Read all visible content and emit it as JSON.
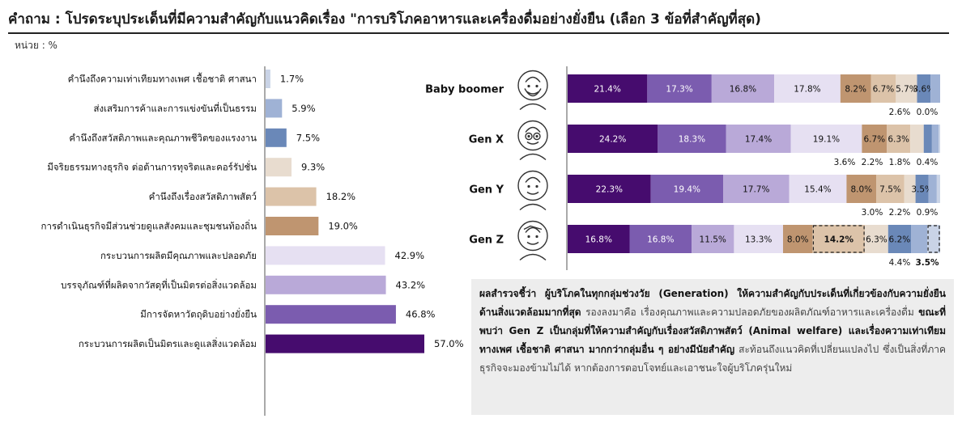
{
  "title": "คำถาม : โปรดระบุประเด็นที่มีความสำคัญกับแนวคิดเรื่อง \"การบริโภคอาหารและเครื่องดื่มอย่างยั่งยืน (เลือก 3 ข้อที่สำคัญที่สุด)",
  "unit": "หน่วย : %",
  "summary": {
    "bold1": "ผลสำรวจชี้ว่า ผู้บริโภคในทุกกลุ่มช่วงวัย (Generation) ให้ความสำคัญกับประเด็นที่เกี่ยวข้องกับความยั่งยืนด้านสิ่งแวดล้อมมากที่สุด",
    "normal1": " รองลงมาคือ เรื่องคุณภาพและความปลอดภัยของผลิตภัณฑ์อาหารและเครื่องดื่ม ",
    "bold2": "ขณะที่พบว่า Gen Z เป็นกลุ่มที่ให้ความสำคัญกับเรื่องสวัสดิภาพสัตว์ (Animal welfare) และเรื่องความเท่าเทียมทางเพศ เชื้อชาติ ศาสนา มากกว่ากลุ่มอื่น ๆ อย่างมีนัยสำคัญ",
    "normal2": " สะท้อนถึงแนวคิดที่เปลี่ยนแปลงไป ซึ่งเป็นสิ่งที่ภาคธุรกิจจะมองข้ามไม่ได้ หากต้องการตอบโจทย์และเอาชนะใจผู้บริโภครุ่นใหม่"
  },
  "chart_data": [
    {
      "type": "bar",
      "orientation": "horizontal",
      "categories": [
        "คำนึงถึงความเท่าเทียมทางเพศ  เชื้อชาติ ศาสนา",
        "ส่งเสริมการค้าและการแข่งขันที่เป็นธรรม",
        "คำนึงถึงสวัสดิภาพและคุณภาพชีวิตของแรงงาน",
        "มีจริยธรรมทางธุรกิจ  ต่อต้านการทุจริตและคอร์รัปชั่น",
        "คำนึงถึงเรื่องสวัสดิภาพสัตว์",
        "การดำเนินธุรกิจมีส่วนช่วยดูแลสังคมและชุมชนท้องถิ่น",
        "กระบวนการผลิตมีคุณภาพและปลอดภัย",
        "บรรจุภัณฑ์ที่ผลิตจากวัสดุที่เป็นมิตรต่อสิ่งแวดล้อม",
        "มีการจัดหาวัตถุดิบอย่างยั่งยืน",
        "กระบวนการผลิตเป็นมิตรและดูแลสิ่งแวดล้อม"
      ],
      "values": [
        1.7,
        5.9,
        7.5,
        9.3,
        18.2,
        19.0,
        42.9,
        43.2,
        46.8,
        57.0
      ],
      "value_labels": [
        "1.7%",
        "5.9%",
        "7.5%",
        "9.3%",
        "18.2%",
        "19.0%",
        "42.9%",
        "43.2%",
        "46.8%",
        "57.0%"
      ],
      "colors": [
        "#c9d3e6",
        "#9fb2d5",
        "#6a88b8",
        "#e8dccf",
        "#dcc3a9",
        "#bf9570",
        "#e6e0f2",
        "#b9a9d8",
        "#7b5caf",
        "#460c6e"
      ],
      "xlim": [
        0,
        57
      ],
      "grid": false
    },
    {
      "type": "bar",
      "orientation": "horizontal",
      "stacked": true,
      "categories": [
        "Baby boomer",
        "Gen X",
        "Gen Y",
        "Gen Z"
      ],
      "series": [
        {
          "color": "#460c6e",
          "values": [
            21.4,
            24.2,
            22.3,
            16.8
          ],
          "labels": [
            "21.4%",
            "24.2%",
            "22.3%",
            "16.8%"
          ]
        },
        {
          "color": "#7b5caf",
          "values": [
            17.3,
            18.3,
            19.4,
            16.8
          ],
          "labels": [
            "17.3%",
            "18.3%",
            "19.4%",
            "16.8%"
          ]
        },
        {
          "color": "#b9a9d8",
          "values": [
            16.8,
            17.4,
            17.7,
            11.5
          ],
          "labels": [
            "16.8%",
            "17.4%",
            "17.7%",
            "11.5%"
          ]
        },
        {
          "color": "#e6e0f2",
          "values": [
            17.8,
            19.1,
            15.4,
            13.3
          ],
          "labels": [
            "17.8%",
            "19.1%",
            "15.4%",
            "13.3%"
          ]
        },
        {
          "color": "#bf9570",
          "values": [
            8.2,
            6.7,
            8.0,
            8.0
          ],
          "labels": [
            "8.2%",
            "6.7%",
            "8.0%",
            "8.0%"
          ]
        },
        {
          "color": "#dcc3a9",
          "values": [
            6.7,
            6.3,
            7.5,
            14.2
          ],
          "labels": [
            "6.7%",
            "6.3%",
            "7.5%",
            "14.2%"
          ]
        },
        {
          "color": "#e8dccf",
          "values": [
            5.7,
            3.6,
            3.0,
            6.3
          ],
          "labels": [
            "5.7%",
            "",
            "",
            "6.3%"
          ]
        },
        {
          "color": "#6a88b8",
          "values": [
            3.6,
            2.2,
            3.5,
            6.2
          ],
          "labels": [
            "3.6%",
            "",
            "3.5%",
            "6.2%"
          ]
        },
        {
          "color": "#9fb2d5",
          "values": [
            2.6,
            1.8,
            2.2,
            4.4
          ],
          "labels": [
            "",
            "",
            "",
            ""
          ]
        },
        {
          "color": "#c9d3e6",
          "values": [
            0.0,
            0.4,
            0.9,
            3.5
          ],
          "labels": [
            "",
            "",
            "",
            ""
          ]
        }
      ],
      "below_labels": [
        [
          "2.6%",
          "0.0%"
        ],
        [
          "3.6%",
          "2.2%",
          "1.8%",
          "0.4%"
        ],
        [
          "3.0%",
          "2.2%",
          "0.9%"
        ],
        [
          "4.4%",
          "3.5%"
        ]
      ],
      "highlighted": [
        {
          "category": "Gen Z",
          "series_index": 5
        },
        {
          "category": "Gen Z",
          "series_index": 9
        }
      ],
      "icons": [
        "older-man-beard-icon",
        "man-glasses-icon",
        "man-icon",
        "young-man-icon"
      ],
      "grid": false
    }
  ]
}
